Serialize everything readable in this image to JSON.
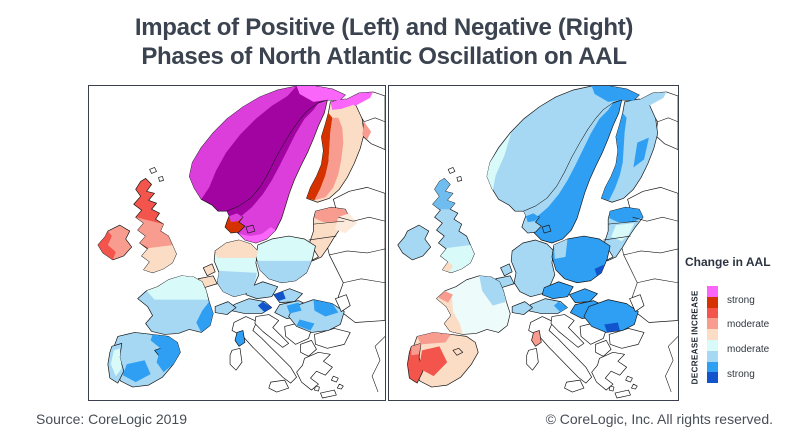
{
  "title": {
    "line1": "Impact of Positive (Left) and Negative (Right)",
    "line2": "Phases of North Atlantic Oscillation on AAL"
  },
  "footer": {
    "source": "Source: CoreLogic 2019",
    "copyright": "© CoreLogic, Inc. All rights reserved."
  },
  "legend": {
    "title": "Change in AAL",
    "increase": "INCREASE",
    "decrease": "DECREASE",
    "swatches": [
      "pink",
      "redStrong",
      "red",
      "salmon",
      "peach",
      "paleCyan",
      "lightBlue",
      "blue",
      "darkBlue"
    ],
    "labels": [
      {
        "text": "strong"
      },
      {
        "text": "moderate"
      },
      {
        "text": "moderate"
      },
      {
        "text": "strong"
      }
    ]
  },
  "palette": {
    "pink": "#FA66FA",
    "magenta": "#DC3EDC",
    "purple": "#A104A1",
    "redStrong": "#D53200",
    "red": "#F3544B",
    "salmon": "#F79C8F",
    "peach": "#FBDCC5",
    "palePeach": "#FCEBDD",
    "paleCyan": "#D8FAF8",
    "nearWhiteCyan": "#EDFCFA",
    "lightBlue": "#A6D8F4",
    "midBlue": "#6FBCEF",
    "blue": "#2F9FF3",
    "darkBlue": "#1254CC",
    "white": "#FFFFFF"
  },
  "chart_data": {
    "type": "heatmap",
    "title": "Impact of Positive (Left) and Negative (Right) Phases of North Atlantic Oscillation on AAL",
    "legend_title": "Change in AAL",
    "legend_scale": [
      "increase very strong (pink)",
      "increase strong (dark red)",
      "increase strong (red)",
      "increase moderate (salmon)",
      "increase moderate (peach)",
      "decrease moderate (pale cyan)",
      "decrease moderate (light blue)",
      "decrease strong (blue)",
      "decrease strong (dark blue)"
    ],
    "maps": [
      {
        "name": "positive NAO phase (left)",
        "pattern": "strong AAL increase over Scandinavia/UK/Ireland, moderate-strong decrease over Iberia, France, central and southeastern Europe"
      },
      {
        "name": "negative NAO phase (right)",
        "pattern": "strong AAL decrease over Scandinavia, UK and central/eastern Europe, moderate-strong increase over Iberia and western France"
      }
    ]
  },
  "maps": {
    "left": {
      "countries": {
        "norway": "purple",
        "sweden": "magenta",
        "finland": "peach",
        "baltics": "peach",
        "denmark": "redStrong",
        "denmark2": "magenta",
        "uk": "red",
        "ireland": "salmon",
        "netherlands": "peach",
        "belgium": "peach",
        "germany": "paleCyan",
        "poland": "paleCyan",
        "czech": "lightBlue",
        "slovakia": "lightBlue",
        "austria": "lightBlue",
        "hungary": "lightBlue",
        "switzerland": "lightBlue",
        "france": "lightBlue",
        "spain": "lightBlue",
        "portugal": "lightBlue",
        "balearics": "blue",
        "corsica": "blue",
        "romania": "lightBlue"
      },
      "patches": {
        "norwayCoast": "magenta",
        "norwayTop": "pink",
        "swedenWest": "purple",
        "swedenEast": "redStrong",
        "swedenSouth": "pink",
        "finlandWest": "redStrong",
        "finlandMid": "salmon",
        "finlandTop": "pink",
        "estonia": "salmon",
        "russiaNPink": "pink",
        "russiaNSalmon": "salmon",
        "ukMid": "salmon",
        "ukSouth": "peach",
        "irelandWest": "red",
        "germanyTop": "peach",
        "germanyBottom": "lightBlue",
        "polandSouth": "lightBlue",
        "slovakiaDot": "darkBlue",
        "austriaDot": "darkBlue",
        "hungaryDot": "blue",
        "franceNorth": "paleCyan",
        "franceSE": "blue",
        "spainEast": "blue",
        "spainSouth": "blue",
        "portugalStrip": "paleCyan",
        "romaniaNE": "blue",
        "romaniaS": "blue",
        "russiaEPeach": "palePeach",
        "denmarkPatch": "magenta"
      }
    },
    "right": {
      "countries": {
        "norway": "lightBlue",
        "sweden": "blue",
        "finland": "lightBlue",
        "baltics": "lightBlue",
        "denmark": "lightBlue",
        "denmark2": "blue",
        "uk": "lightBlue",
        "ireland": "lightBlue",
        "netherlands": "lightBlue",
        "belgium": "lightBlue",
        "germany": "lightBlue",
        "poland": "blue",
        "czech": "blue",
        "slovakia": "blue",
        "austria": "lightBlue",
        "hungary": "blue",
        "switzerland": "lightBlue",
        "france": "nearWhiteCyan",
        "spain": "peach",
        "portugal": "red",
        "balearics": "peach",
        "corsica": "salmon",
        "romania": "blue"
      },
      "patches": {
        "norwaySW": "paleCyan",
        "norwayTop": "blue",
        "swedenWest": "lightBlue",
        "swedenEast": "darkBlue",
        "finlandWest": "blue",
        "finlandEast": "blue",
        "estonia": "blue",
        "latviaPale": "paleCyan",
        "russiaNPink": "lightBlue",
        "ukScotland": "midBlue",
        "ukSouth": "paleCyan",
        "ukSW": "peach",
        "polandWest": "lightBlue",
        "polandSE": "darkBlue",
        "austriaDot": "blue",
        "franceNE": "lightBlue",
        "franceWest": "peach",
        "franceBrittany": "salmon",
        "spainCenterRed": "red",
        "spainNorthSalmon": "salmon",
        "portugalSalmonN": "salmon",
        "romaniaSdark": "darkBlue",
        "ukraineStrip": "paleCyan",
        "denmarkPatch": "blue"
      }
    }
  }
}
